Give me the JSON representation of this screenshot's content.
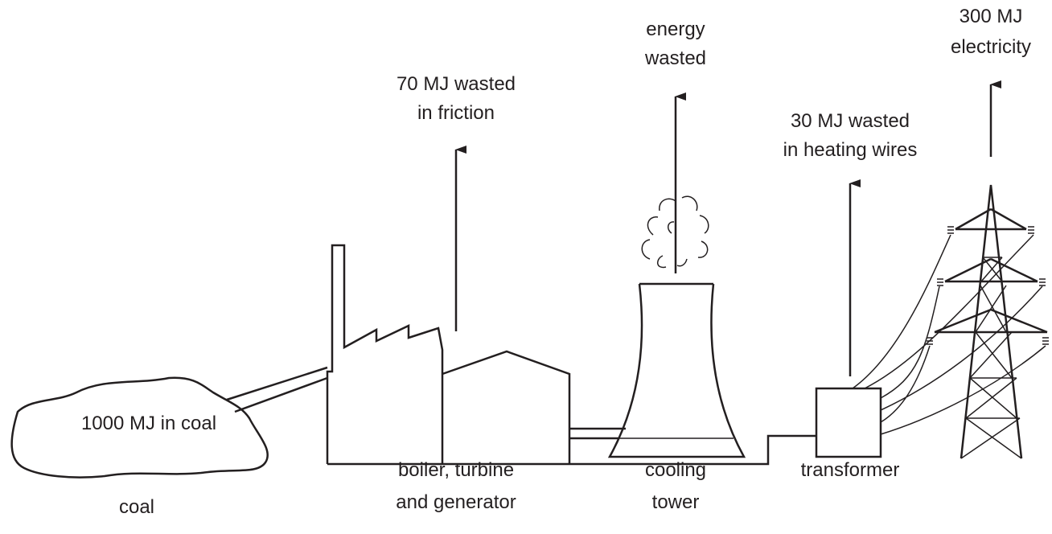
{
  "nodes": [
    {
      "inside": "1000 MJ in coal",
      "name": [
        "coal"
      ]
    },
    {
      "name": [
        "boiler, turbine",
        "and generator"
      ],
      "output": [
        "70 MJ wasted",
        "in friction"
      ]
    },
    {
      "name": [
        "cooling",
        "tower"
      ],
      "output": [
        "energy",
        "wasted"
      ]
    },
    {
      "name": [
        "transformer"
      ],
      "output": [
        "30 MJ wasted",
        "in heating wires"
      ]
    },
    {
      "output": [
        "300 MJ",
        "electricity"
      ]
    }
  ]
}
